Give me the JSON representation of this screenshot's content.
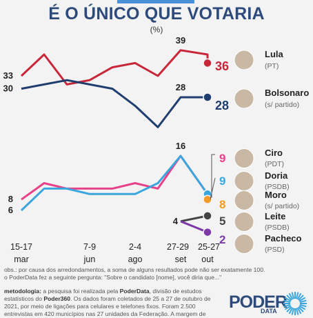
{
  "header": {
    "title": "É O ÚNICO QUE VOTARIA",
    "unit": "(%)"
  },
  "chart_data": {
    "type": "line",
    "title": "É O ÚNICO QUE VOTARIA",
    "ylabel": "(%)",
    "x_labels": [
      {
        "top": "15-17",
        "bottom": "mar"
      },
      {
        "top": "7-9",
        "bottom": "jun"
      },
      {
        "top": "2-4",
        "bottom": "ago"
      },
      {
        "top": "27-29",
        "bottom": "set"
      },
      {
        "top": "25-27",
        "bottom": "out"
      }
    ],
    "series": [
      {
        "name": "Lula",
        "party": "(PT)",
        "color": "#c8273a",
        "group": "top",
        "values": [
          33,
          38,
          31,
          32,
          35,
          36,
          33,
          39,
          38,
          36
        ],
        "labels": [
          {
            "i": 0,
            "text": "33"
          },
          {
            "i": 7,
            "text": "39"
          }
        ],
        "final": "36"
      },
      {
        "name": "Bolsonaro",
        "party": "(s/ partido)",
        "color": "#1f3d6e",
        "group": "top",
        "values": [
          30,
          31,
          32,
          31,
          30,
          26,
          21,
          28,
          28,
          28
        ],
        "labels": [
          {
            "i": 0,
            "text": "30"
          },
          {
            "i": 7,
            "text": "28"
          }
        ],
        "final": "28"
      },
      {
        "name": "Ciro",
        "party": "(PDT)",
        "color": "#e8418a",
        "group": "bottom",
        "values": [
          8,
          11,
          10,
          10,
          10,
          11,
          10,
          16,
          9
        ],
        "labels": [
          {
            "i": 0,
            "text": "8"
          }
        ],
        "final": "9"
      },
      {
        "name": "Doria",
        "party": "(PSDB)",
        "color": "#3aa6dd",
        "group": "bottom",
        "values": [
          6,
          10,
          10,
          9,
          9,
          9,
          11,
          16,
          9
        ],
        "labels": [
          {
            "i": 0,
            "text": "6"
          },
          {
            "i": 7,
            "text": "16"
          }
        ],
        "final": "9"
      },
      {
        "name": "Moro",
        "party": "(s/ partido)",
        "color": "#f29b26",
        "group": "bottom",
        "values": [
          8
        ],
        "labels": [],
        "final": "8"
      },
      {
        "name": "Leite",
        "party": "(PSDB)",
        "color": "#444444",
        "group": "bottom",
        "values": [
          4,
          5
        ],
        "labels": [
          {
            "i": 0,
            "text": "4"
          }
        ],
        "final": "5"
      },
      {
        "name": "Pacheco",
        "party": "(PSD)",
        "color": "#7b3aa6",
        "group": "bottom",
        "values": [
          4,
          2
        ],
        "labels": [],
        "final": "2"
      }
    ]
  },
  "notes": {
    "obs": "obs.: por causa dos arredondamentos, a soma de alguns resultados pode não ser exatamente 100.",
    "question": "o PoderData fez a seguinte pergunta: \"Sobre o candidato [nome], você diria que...\"",
    "methodology_label": "metodologia:",
    "methodology_1": " a pesquisa foi realizada pela ",
    "methodology_brand": "PoderData",
    "methodology_2": ", divisão de estudos",
    "methodology_3a": "estatísticos do ",
    "methodology_brand2": "Poder360",
    "methodology_3b": ". Os dados foram coletados de 25 a 27 de outubro de",
    "methodology_4": "2021, por meio de ligações para celulares e telefones fixos. Foram 2.500",
    "methodology_5": "entrevistas em 420 municípios nas 27 unidades da Federação. A margem de"
  },
  "logo": {
    "text": "PODER",
    "sub": "DATA"
  }
}
